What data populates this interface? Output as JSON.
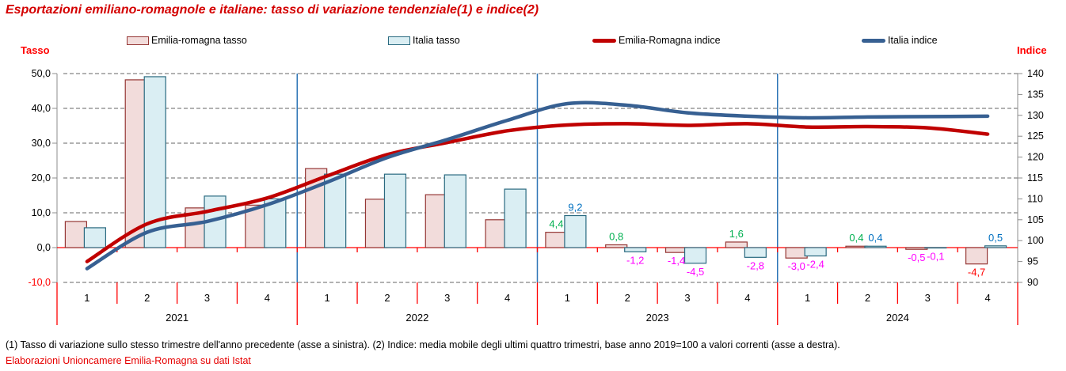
{
  "title": "Esportazioni emiliano-romagnole e italiane: tasso di variazione tendenziale(1) e indice(2)",
  "axis_titles": {
    "left": "Tasso",
    "right": "Indice"
  },
  "legend": [
    {
      "label": "Emilia-romagna tasso",
      "type": "bar",
      "fill": "#F2DCDB",
      "stroke": "#953735"
    },
    {
      "label": "Italia tasso",
      "type": "bar",
      "fill": "#DAEEF3",
      "stroke": "#2A6A80"
    },
    {
      "label": "Emilia-Romagna indice",
      "type": "line",
      "color": "#C00000"
    },
    {
      "label": "Italia indice",
      "type": "line",
      "color": "#376092"
    }
  ],
  "footnotes": {
    "note": "(1) Tasso di variazione sullo stesso trimestre dell'anno precedente (asse a sinistra). (2) Indice: media mobile degli ultimi quattro trimestri, base anno 2019=100 a valori correnti (asse a destra).",
    "source": "Elaborazioni Unioncamere Emilia-Romagna su dati Istat"
  },
  "chart_data": {
    "type": "bar",
    "subtype": "combo bar+line, dual axis",
    "years": [
      "2021",
      "2022",
      "2023",
      "2024"
    ],
    "quarters": [
      "1",
      "2",
      "3",
      "4"
    ],
    "left_axis": {
      "title": "Tasso",
      "min": -10,
      "max": 50,
      "step": 10,
      "tick_labels": [
        "50,0",
        "40,0",
        "30,0",
        "20,0",
        "10,0",
        "0,0",
        "-10,0"
      ],
      "negative_label_color": "#FF0000",
      "label_color": "#000000"
    },
    "right_axis": {
      "title": "Indice",
      "min": 90,
      "max": 140,
      "step": 5,
      "tick_labels": [
        "140",
        "135",
        "130",
        "125",
        "120",
        "115",
        "110",
        "105",
        "100",
        "95",
        "90"
      ],
      "label_color": "#000000"
    },
    "grid": {
      "on": true,
      "color": "#666666",
      "dash": "5,3"
    },
    "zero_line_color": "#FF0000",
    "year_divider_color": "#2E75B6",
    "axis_line_color": "#8C8C8C",
    "series": [
      {
        "name": "Emilia-romagna tasso",
        "type": "bar",
        "axis": "left",
        "fill": "#F2DCDB",
        "stroke": "#953735",
        "values": [
          7.5,
          48.2,
          11.4,
          12.2,
          22.7,
          13.9,
          15.2,
          8.0,
          4.4,
          0.8,
          -1.4,
          1.6,
          -3.0,
          0.4,
          -0.5,
          -4.7
        ],
        "value_labels": [
          null,
          null,
          null,
          null,
          null,
          null,
          null,
          null,
          {
            "text": "4,4",
            "color": "#00B050"
          },
          {
            "text": "0,8",
            "color": "#00B050"
          },
          {
            "text": "-1,4",
            "color": "#FF00FF"
          },
          {
            "text": "1,6",
            "color": "#00B050"
          },
          {
            "text": "-3,0",
            "color": "#FF00FF"
          },
          {
            "text": "0,4",
            "color": "#00B050"
          },
          {
            "text": "-0,5",
            "color": "#FF00FF"
          },
          {
            "text": "-4,7",
            "color": "#FF0000"
          }
        ]
      },
      {
        "name": "Italia tasso",
        "type": "bar",
        "axis": "left",
        "fill": "#DAEEF3",
        "stroke": "#2A6A80",
        "values": [
          5.7,
          49.1,
          14.8,
          14.0,
          21.1,
          21.1,
          20.9,
          16.8,
          9.2,
          -1.2,
          -4.5,
          -2.8,
          -2.4,
          0.4,
          -0.1,
          0.5
        ],
        "value_labels": [
          null,
          null,
          null,
          null,
          null,
          null,
          null,
          null,
          {
            "text": "9,2",
            "color": "#0070C0"
          },
          {
            "text": "-1,2",
            "color": "#FF00FF"
          },
          {
            "text": "-4,5",
            "color": "#FF00FF"
          },
          {
            "text": "-2,8",
            "color": "#FF00FF"
          },
          {
            "text": "-2,4",
            "color": "#FF00FF"
          },
          {
            "text": "0,4",
            "color": "#0070C0"
          },
          {
            "text": "-0,1",
            "color": "#FF00FF"
          },
          {
            "text": "0,5",
            "color": "#0070C0"
          }
        ]
      },
      {
        "name": "Emilia-Romagna indice",
        "type": "line",
        "axis": "right",
        "color": "#C00000",
        "values": [
          95.0,
          104.0,
          107.0,
          110.2,
          115.5,
          120.6,
          123.5,
          126.3,
          127.7,
          128.0,
          127.6,
          128.0,
          127.2,
          127.3,
          127.0,
          125.5
        ]
      },
      {
        "name": "Italia indice",
        "type": "line",
        "axis": "right",
        "color": "#376092",
        "values": [
          93.3,
          102.0,
          104.6,
          108.6,
          114.0,
          119.9,
          124.2,
          128.8,
          132.8,
          132.4,
          130.6,
          129.8,
          129.4,
          129.6,
          129.7,
          129.8
        ]
      }
    ]
  }
}
